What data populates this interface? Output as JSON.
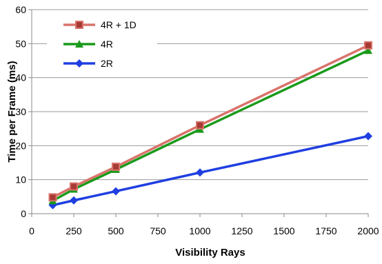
{
  "chart_data": {
    "type": "line",
    "title": "",
    "xlabel": "Visibility Rays",
    "ylabel": "Time per Frame (ms)",
    "xlim": [
      0,
      2000
    ],
    "ylim": [
      0,
      60
    ],
    "xticks": [
      0,
      250,
      500,
      750,
      1000,
      1250,
      1500,
      1750,
      2000
    ],
    "yticks": [
      0,
      10,
      20,
      30,
      40,
      50,
      60
    ],
    "grid": "horizontal",
    "legend_position": "top-left",
    "x": [
      125,
      250,
      500,
      1000,
      2000
    ],
    "series": [
      {
        "name": "4R + 1D",
        "values": [
          4.8,
          8.0,
          13.8,
          26.0,
          49.5
        ],
        "color": "#d9736b",
        "marker": "square"
      },
      {
        "name": "4R",
        "values": [
          3.8,
          7.2,
          13.0,
          24.8,
          48.0
        ],
        "color": "#1a9a1a",
        "marker": "triangle"
      },
      {
        "name": "2R",
        "values": [
          2.5,
          3.9,
          6.6,
          12.1,
          22.8
        ],
        "color": "#1f3fe0",
        "marker": "diamond"
      }
    ]
  }
}
